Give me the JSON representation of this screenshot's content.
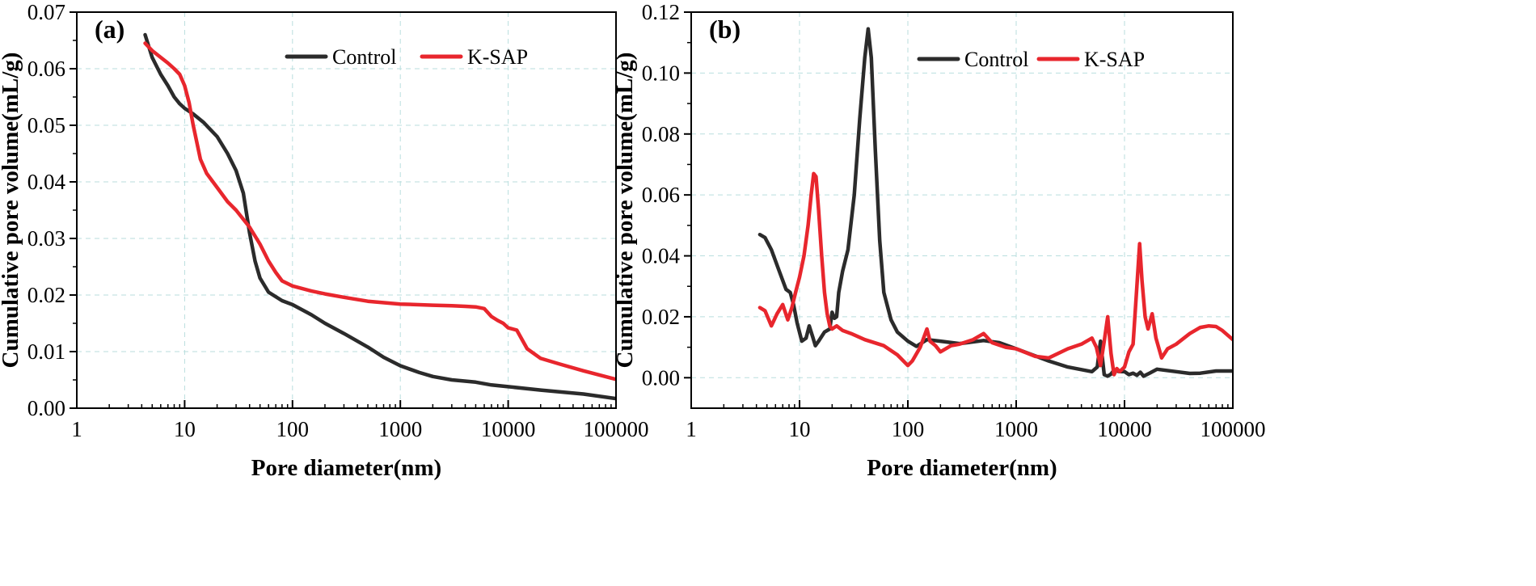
{
  "colors": {
    "control": "#2b2b2b",
    "ksap": "#e8262d"
  },
  "chart_data": [
    {
      "type": "line",
      "panel_label": "(a)",
      "xlabel": "Pore diameter(nm)",
      "ylabel": "Cumulative pore volume(mL/g)",
      "xscale": "log",
      "xlim": [
        1,
        100000
      ],
      "ylim": [
        0,
        0.07
      ],
      "xticks": [
        1,
        10,
        100,
        1000,
        10000,
        100000
      ],
      "xtick_labels": [
        "1",
        "10",
        "100",
        "1000",
        "10000",
        "100000"
      ],
      "yticks": [
        0,
        0.01,
        0.02,
        0.03,
        0.04,
        0.05,
        0.06,
        0.07
      ],
      "ytick_labels": [
        "0.00",
        "0.01",
        "0.02",
        "0.03",
        "0.04",
        "0.05",
        "0.06",
        "0.07"
      ],
      "grid": true,
      "legend_position": "top",
      "series": [
        {
          "name": "Control",
          "color": "#2b2b2b",
          "x": [
            4.3,
            5,
            6,
            7,
            8,
            9,
            10,
            12,
            15,
            20,
            25,
            30,
            35,
            40,
            45,
            50,
            60,
            80,
            100,
            150,
            200,
            300,
            500,
            700,
            1000,
            1500,
            2000,
            3000,
            5000,
            7000,
            10000,
            20000,
            50000,
            100000
          ],
          "values": [
            0.066,
            0.062,
            0.059,
            0.057,
            0.055,
            0.0538,
            0.053,
            0.052,
            0.0505,
            0.048,
            0.045,
            0.042,
            0.038,
            0.031,
            0.026,
            0.023,
            0.0205,
            0.019,
            0.0183,
            0.0165,
            0.015,
            0.0132,
            0.0108,
            0.009,
            0.0075,
            0.0063,
            0.0056,
            0.005,
            0.0046,
            0.0041,
            0.0038,
            0.0032,
            0.0025,
            0.0017
          ]
        },
        {
          "name": "K-SAP",
          "color": "#e8262d",
          "x": [
            4.3,
            5,
            6,
            7,
            8,
            9,
            10,
            11,
            12,
            14,
            16,
            20,
            25,
            30,
            40,
            50,
            60,
            70,
            80,
            100,
            150,
            200,
            300,
            500,
            1000,
            2000,
            3000,
            4000,
            5000,
            6000,
            7000,
            8000,
            9000,
            10000,
            12000,
            15000,
            20000,
            30000,
            50000,
            100000
          ],
          "values": [
            0.0645,
            0.0632,
            0.062,
            0.061,
            0.06,
            0.059,
            0.057,
            0.054,
            0.05,
            0.044,
            0.0415,
            0.039,
            0.0365,
            0.035,
            0.032,
            0.029,
            0.026,
            0.024,
            0.0225,
            0.0216,
            0.0207,
            0.0202,
            0.0196,
            0.0189,
            0.0184,
            0.0182,
            0.0181,
            0.018,
            0.0179,
            0.0176,
            0.0162,
            0.0155,
            0.015,
            0.0142,
            0.0138,
            0.0105,
            0.0088,
            0.0078,
            0.0066,
            0.0051
          ]
        }
      ]
    },
    {
      "type": "line",
      "panel_label": "(b)",
      "xlabel": "Pore diameter(nm)",
      "ylabel": "Cumulative pore volume(mL/g)",
      "xscale": "log",
      "xlim": [
        1,
        100000
      ],
      "ylim": [
        -0.01,
        0.12
      ],
      "xticks": [
        1,
        10,
        100,
        1000,
        10000,
        100000
      ],
      "xtick_labels": [
        "1",
        "10",
        "100",
        "1000",
        "10000",
        "100000"
      ],
      "yticks": [
        0,
        0.02,
        0.04,
        0.06,
        0.08,
        0.1,
        0.12
      ],
      "ytick_labels": [
        "0.00",
        "0.02",
        "0.04",
        "0.06",
        "0.08",
        "0.10",
        "0.12"
      ],
      "grid": true,
      "legend_position": "top",
      "series": [
        {
          "name": "Control",
          "color": "#2b2b2b",
          "x": [
            4.3,
            4.8,
            5.5,
            6.5,
            7.5,
            8.2,
            8.8,
            9.5,
            10.5,
            11.5,
            12.3,
            13.2,
            14,
            15,
            17,
            19,
            20,
            21,
            22,
            23,
            25,
            28,
            32,
            36,
            40,
            43,
            46,
            50,
            55,
            60,
            70,
            80,
            100,
            120,
            150,
            200,
            300,
            500,
            700,
            1000,
            2000,
            3000,
            5000,
            5600,
            6000,
            6500,
            7000,
            7500,
            8000,
            9000,
            10000,
            11000,
            12000,
            13000,
            14000,
            15000,
            17000,
            20000,
            30000,
            40000,
            50000,
            70000,
            100000
          ],
          "values": [
            0.047,
            0.046,
            0.042,
            0.035,
            0.029,
            0.028,
            0.024,
            0.018,
            0.012,
            0.013,
            0.017,
            0.0135,
            0.0105,
            0.012,
            0.015,
            0.016,
            0.0215,
            0.0195,
            0.02,
            0.028,
            0.035,
            0.042,
            0.06,
            0.085,
            0.105,
            0.1145,
            0.105,
            0.075,
            0.045,
            0.028,
            0.019,
            0.015,
            0.012,
            0.0103,
            0.0125,
            0.012,
            0.0112,
            0.0122,
            0.0115,
            0.0095,
            0.0055,
            0.0035,
            0.002,
            0.0035,
            0.012,
            0.001,
            0.0005,
            0.0012,
            0.0025,
            0.002,
            0.002,
            0.001,
            0.0015,
            0.0008,
            0.0018,
            0.0005,
            0.0015,
            0.0028,
            0.002,
            0.0014,
            0.0015,
            0.0022,
            0.0022
          ]
        },
        {
          "name": "K-SAP",
          "color": "#e8262d",
          "x": [
            4.3,
            4.8,
            5.5,
            6.2,
            7,
            7.8,
            8.5,
            9.2,
            10,
            11,
            12,
            12.8,
            13.5,
            14.2,
            15,
            16,
            17,
            18,
            19,
            20,
            22,
            25,
            30,
            40,
            60,
            80,
            100,
            110,
            130,
            150,
            160,
            180,
            200,
            250,
            300,
            400,
            500,
            600,
            800,
            1000,
            1500,
            2000,
            3000,
            4000,
            5000,
            5500,
            6000,
            6500,
            7000,
            7500,
            8000,
            8500,
            9000,
            10000,
            11000,
            12000,
            13000,
            13800,
            14500,
            15500,
            16500,
            18000,
            19500,
            22000,
            25000,
            30000,
            40000,
            50000,
            60000,
            70000,
            80000,
            100000
          ],
          "values": [
            0.023,
            0.022,
            0.017,
            0.021,
            0.024,
            0.019,
            0.023,
            0.028,
            0.033,
            0.04,
            0.05,
            0.06,
            0.067,
            0.066,
            0.055,
            0.04,
            0.028,
            0.021,
            0.017,
            0.016,
            0.017,
            0.0155,
            0.0145,
            0.0125,
            0.0105,
            0.0075,
            0.004,
            0.0055,
            0.01,
            0.016,
            0.012,
            0.0105,
            0.0085,
            0.0105,
            0.011,
            0.0125,
            0.0145,
            0.0115,
            0.01,
            0.0095,
            0.007,
            0.0065,
            0.0095,
            0.011,
            0.013,
            0.01,
            0.004,
            0.012,
            0.02,
            0.008,
            0.001,
            0.003,
            0.002,
            0.0035,
            0.0085,
            0.011,
            0.03,
            0.044,
            0.032,
            0.02,
            0.016,
            0.021,
            0.013,
            0.0065,
            0.0095,
            0.011,
            0.0145,
            0.0165,
            0.017,
            0.0168,
            0.0155,
            0.0125
          ]
        }
      ]
    }
  ]
}
